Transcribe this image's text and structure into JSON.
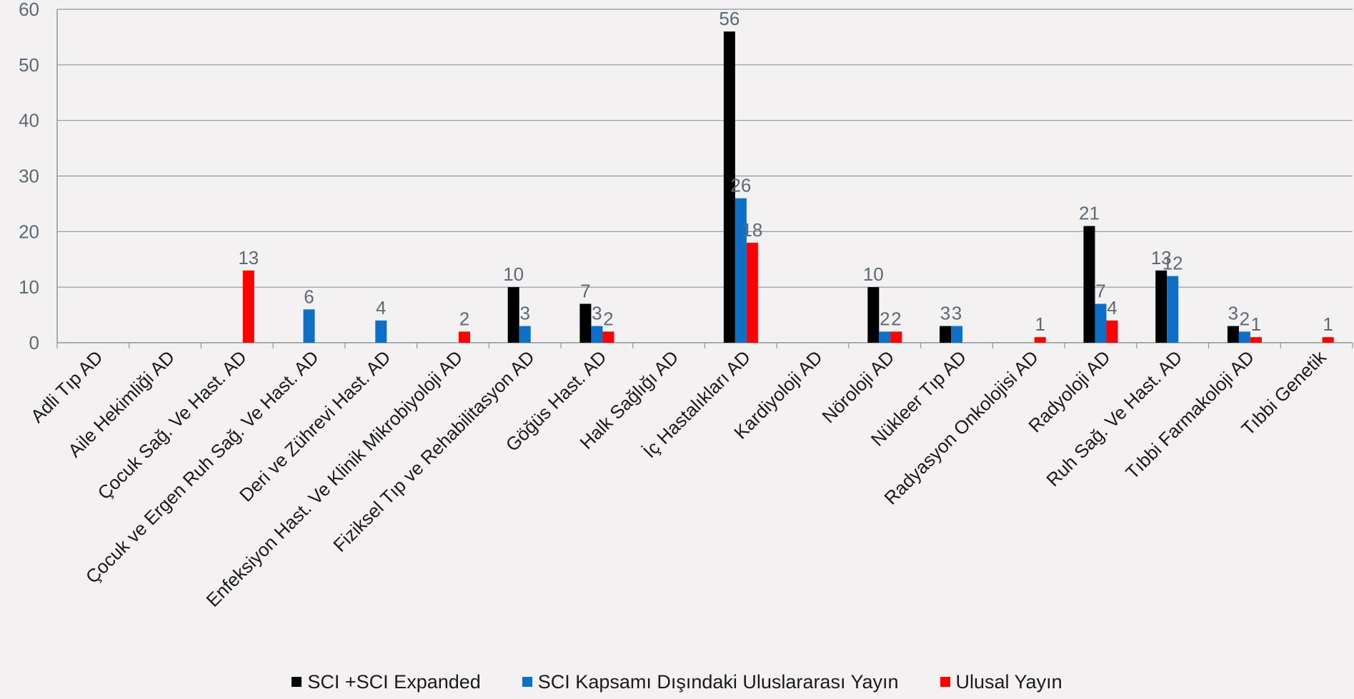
{
  "chart_data": {
    "type": "bar",
    "categories": [
      "Adli Tıp AD",
      "Aile Hekimliği AD",
      "Çocuk Sağ. Ve Hast.  AD",
      "Çocuk ve Ergen Ruh Sağ. Ve Hast. AD",
      "Deri ve Zührevi Hast. AD",
      "Enfeksiyon Hast. Ve Klinik Mikrobiyoloji AD",
      "Fiziksel Tıp ve Rehabilitasyon AD",
      "Göğüs Hast. AD",
      "Halk Sağlığı AD",
      "İç Hastalıkları AD",
      "Kardiyoloji AD",
      "Nöroloji AD",
      "Nükleer Tıp AD",
      "Radyasyon Onkolojisi AD",
      "Radyoloji AD",
      "Ruh Sağ. Ve Hast. AD",
      "Tıbbi Farmakoloji AD",
      "Tıbbi Genetik"
    ],
    "series": [
      {
        "name": "SCI +SCI Expanded",
        "color": "#000000",
        "values": [
          null,
          null,
          null,
          null,
          null,
          null,
          10,
          7,
          null,
          56,
          null,
          10,
          3,
          null,
          21,
          13,
          3,
          null
        ]
      },
      {
        "name": "SCI Kapsamı Dışındaki Uluslararası Yayın",
        "color": "#0f6fc6",
        "values": [
          null,
          null,
          null,
          6,
          4,
          null,
          3,
          3,
          null,
          26,
          null,
          2,
          3,
          null,
          7,
          12,
          2,
          null
        ]
      },
      {
        "name": "Ulusal Yayın",
        "color": "#ff0000",
        "values": [
          null,
          null,
          13,
          null,
          null,
          2,
          null,
          2,
          null,
          18,
          null,
          2,
          null,
          1,
          4,
          null,
          1,
          1
        ]
      }
    ],
    "ylim": [
      0,
      60
    ],
    "yticks": [
      0,
      10,
      20,
      30,
      40,
      50,
      60
    ],
    "grid": true,
    "legend_position": "bottom"
  }
}
